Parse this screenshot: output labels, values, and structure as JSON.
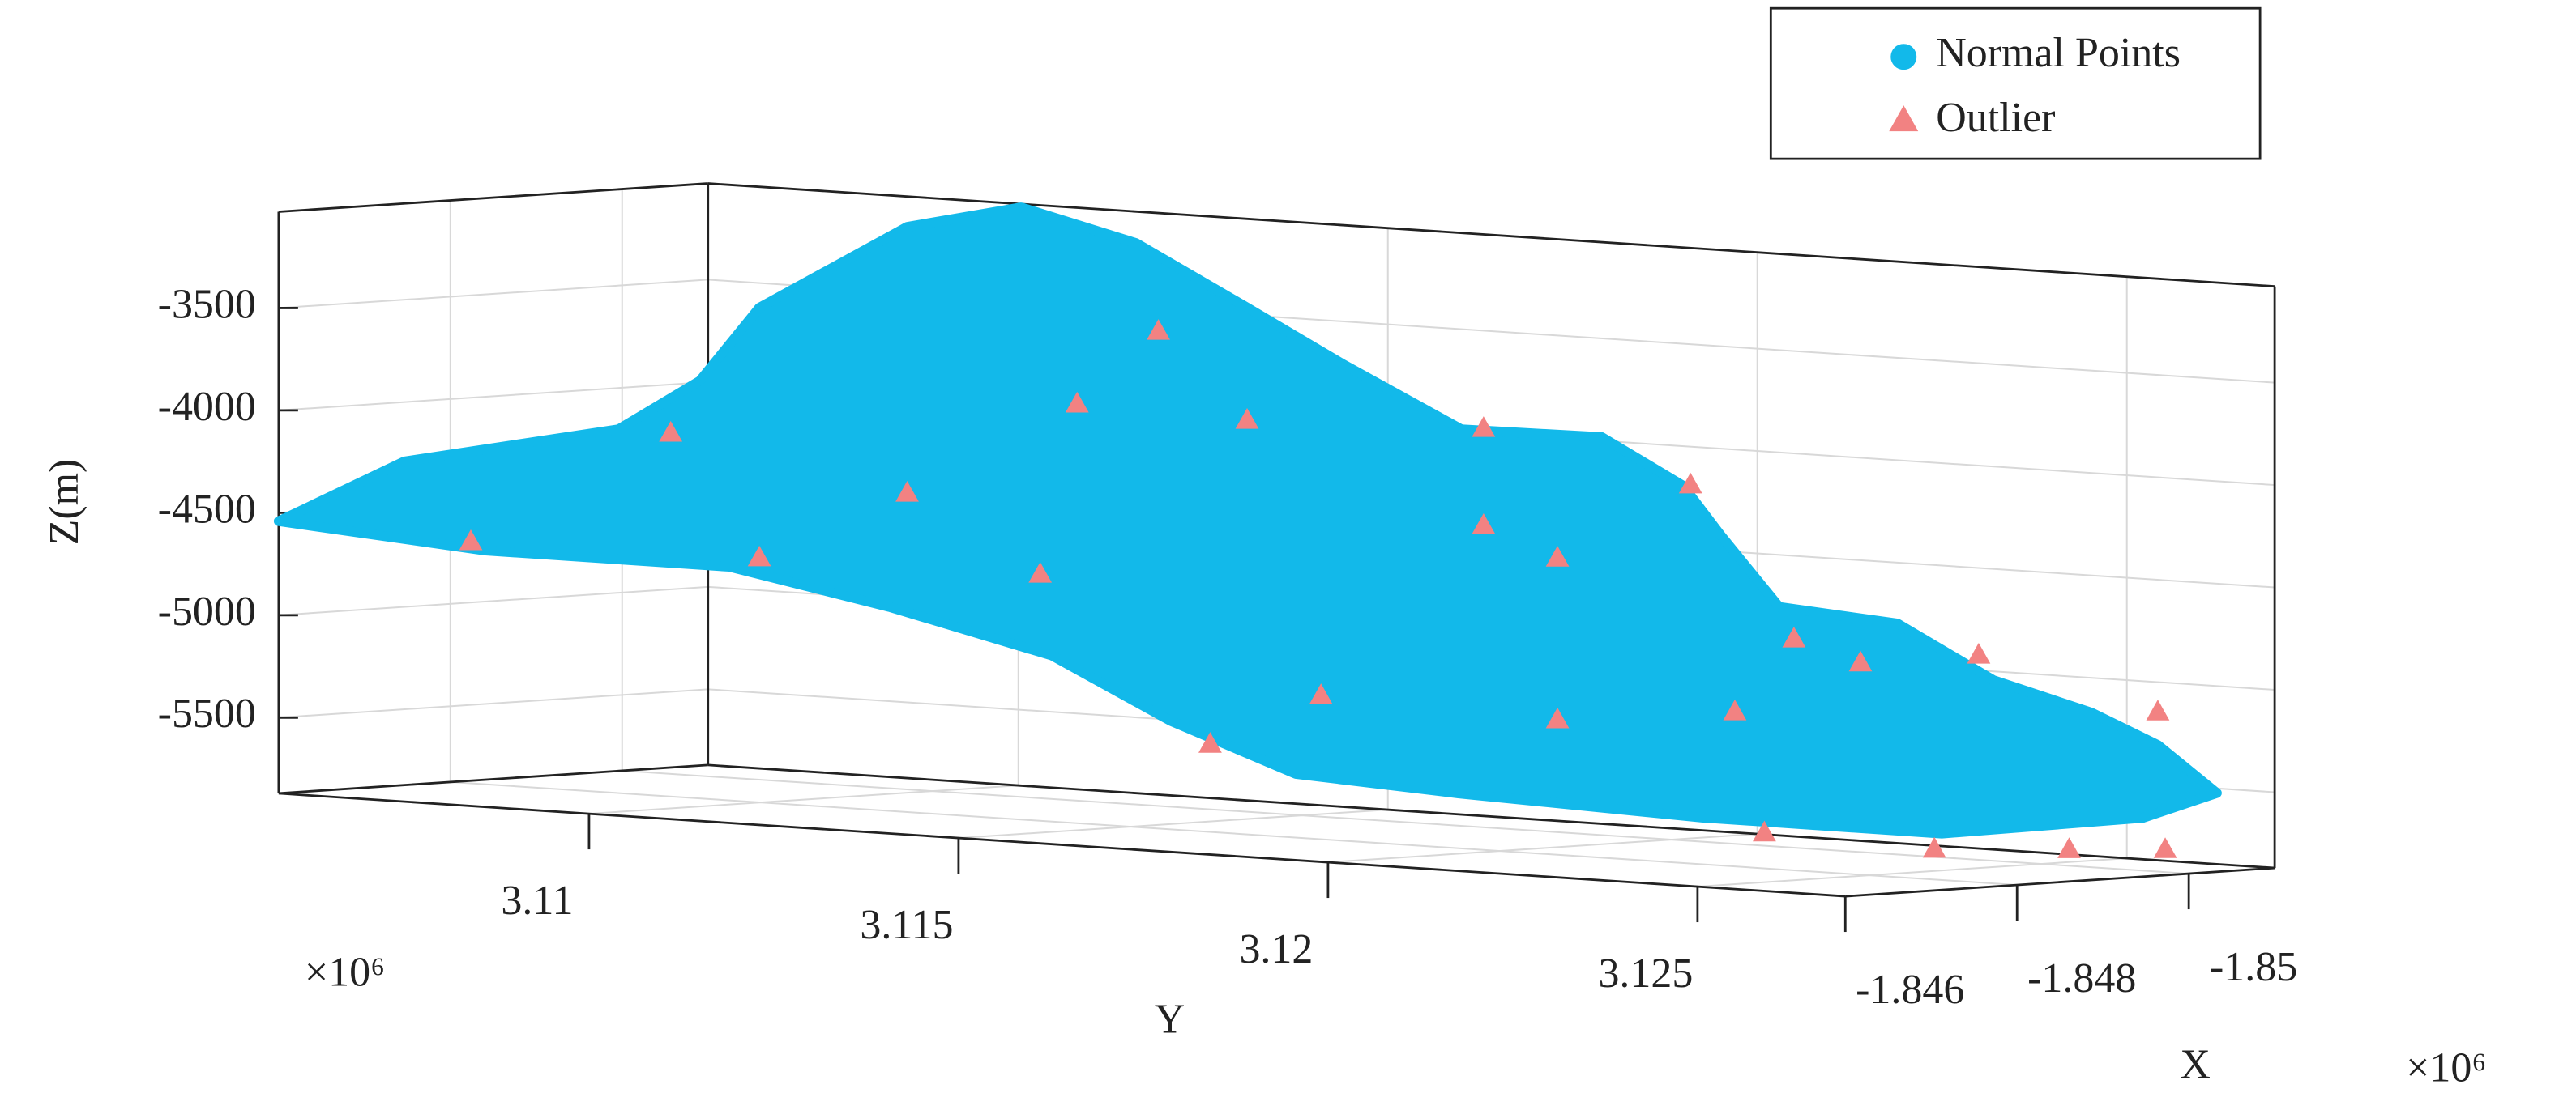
{
  "chart_data": {
    "type": "scatter3d",
    "xlabel": "X",
    "ylabel": "Y",
    "zlabel": "Z(m)",
    "x_multiplier": "×10⁶",
    "y_multiplier": "×10⁶",
    "xlim": [
      -1.846,
      -1.851
    ],
    "xticks": [
      -1.846,
      -1.848,
      -1.85
    ],
    "ylim": [
      3.1058,
      3.127
    ],
    "yticks": [
      3.11,
      3.115,
      3.12,
      3.125
    ],
    "zlim": [
      -5870,
      -3030
    ],
    "zticks": [
      -3500,
      -4000,
      -4500,
      -5000,
      -5500
    ],
    "grid": true,
    "legend": "top-right",
    "series": [
      {
        "name": "Normal Points",
        "color": "#12b9ea",
        "marker": "circle",
        "x": [
          -1.846,
          -1.846,
          -1.846,
          -1.846,
          -1.8485,
          -1.8485,
          -1.85,
          -1.8485,
          -1.8485,
          -1.8485,
          -1.8485,
          -1.8485,
          -1.8485,
          -1.8485,
          -1.8485,
          -1.8485,
          -1.8485,
          -1.8505,
          -1.8505,
          -1.8505,
          -1.8505,
          -1.8485,
          -1.847,
          -1.847,
          -1.847,
          -1.847,
          -1.847,
          -1.847,
          -1.846,
          -1.846
        ],
        "y": [
          3.1058,
          3.1075,
          3.1104,
          3.1115,
          3.1094,
          3.1114,
          3.1112,
          3.1145,
          3.116,
          3.1173,
          3.1189,
          3.1208,
          3.1219,
          3.1224,
          3.1232,
          3.1248,
          3.1261,
          3.1251,
          3.126,
          3.1268,
          3.1258,
          3.1254,
          3.1239,
          3.1206,
          3.1184,
          3.1167,
          3.1151,
          3.1129,
          3.1119,
          3.1086
        ],
        "z": [
          -4541,
          -4209,
          -3983,
          -3720,
          -3482,
          -3040,
          -2991,
          -3046,
          -3325,
          -3571,
          -3851,
          -3844,
          -4055,
          -4281,
          -4616,
          -4659,
          -4905,
          -5142,
          -5279,
          -5495,
          -5640,
          -5671,
          -5587,
          -5547,
          -5504,
          -5284,
          -5004,
          -4819,
          -4619,
          -4618
        ]
      },
      {
        "name": "Outlier",
        "color": "#f28282",
        "marker": "triangle",
        "x": [
          -1.846,
          -1.8485,
          -1.8485,
          -1.8485,
          -1.8485,
          -1.8485,
          -1.8485,
          -1.8485,
          -1.8485,
          -1.8485,
          -1.8485,
          -1.8485,
          -1.8485,
          -1.8485,
          -1.8485,
          -1.8485,
          -1.8485,
          -1.8485,
          -1.8485,
          -1.8505,
          -1.8485,
          -1.8485,
          -1.8505,
          -1.8505
        ],
        "y": [
          3.1084,
          3.1082,
          3.1114,
          3.1132,
          3.1137,
          3.1148,
          3.116,
          3.1192,
          3.1202,
          3.1192,
          3.122,
          3.1234,
          3.1243,
          3.1259,
          3.1226,
          3.1202,
          3.117,
          3.1155,
          3.1094,
          3.126,
          3.1253,
          3.123,
          3.1248,
          3.1261
        ],
        "z": [
          -4583,
          -4127,
          -4344,
          -4697,
          -3854,
          -3473,
          -3879,
          -3843,
          -4452,
          -4317,
          -4052,
          -4771,
          -4867,
          -4791,
          -5146,
          -5242,
          -5200,
          -5473,
          -4707,
          -5121,
          -5753,
          -5728,
          -5822,
          -5791
        ]
      }
    ]
  }
}
